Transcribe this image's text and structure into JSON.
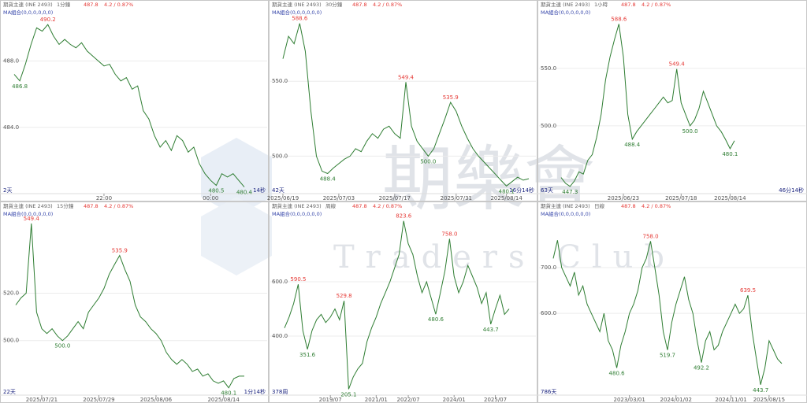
{
  "watermark": {
    "title": "期樂會",
    "subtitle": "Traders Club"
  },
  "chart_data": [
    {
      "type": "line",
      "instrument": "期貨主連 (INE 2493)",
      "period": "1分鐘",
      "price": "487.8",
      "change": "4.2 / 0.87%",
      "indicator": "MA組合(0,0,0,0,0,0)",
      "color": "#2e7d32",
      "values": [
        487.2,
        486.8,
        487.8,
        489.0,
        490.0,
        489.8,
        490.2,
        489.5,
        489.0,
        489.3,
        489.0,
        488.8,
        489.1,
        488.6,
        488.3,
        488.0,
        487.7,
        487.8,
        487.2,
        486.8,
        487.0,
        486.3,
        486.5,
        485.0,
        484.5,
        483.5,
        482.8,
        483.2,
        482.6,
        483.5,
        483.2,
        482.5,
        482.8,
        481.8,
        481.2,
        480.8,
        480.5,
        481.2,
        481.0,
        481.2,
        480.8,
        480.4
      ],
      "ylim": [
        480,
        491.3
      ],
      "yticks": [
        {
          "value": 484,
          "label": "484.0"
        },
        {
          "value": 488,
          "label": "488.0"
        }
      ],
      "xticks": [
        {
          "value": 16,
          "label": "22:00"
        },
        {
          "value": 35,
          "label": "00:00"
        }
      ],
      "annotations": [
        {
          "value": 490.2,
          "label": "490.2",
          "x": 6,
          "color": "#e53935"
        },
        {
          "value": 486.8,
          "label": "486.8",
          "x": 1,
          "color": "#2e7d32"
        },
        {
          "value": 480.5,
          "label": "480.5",
          "x": 36,
          "color": "#2e7d32"
        },
        {
          "value": 480.4,
          "label": "480.4",
          "x": 41,
          "color": "#2e7d32"
        }
      ],
      "count_label": "2天",
      "end_label": "14秒"
    },
    {
      "type": "line",
      "instrument": "期貨主連 (INE 2493)",
      "period": "30分鐘",
      "price": "487.8",
      "change": "4.2 / 0.87%",
      "indicator": "MA組合(0,0,0,0,0,0)",
      "color": "#2e7d32",
      "values": [
        565,
        580,
        575,
        588.6,
        570,
        530,
        500,
        490,
        488.4,
        492,
        495,
        498,
        500,
        505,
        503,
        510,
        515,
        512,
        518,
        520,
        515,
        512,
        549.4,
        520,
        510,
        505,
        500,
        505,
        515,
        525,
        535.9,
        530,
        520,
        512,
        505,
        500,
        496,
        492,
        488,
        484,
        480.1,
        483,
        486,
        484,
        485
      ],
      "ylim": [
        475,
        600
      ],
      "yticks": [
        {
          "value": 500,
          "label": "500.0"
        },
        {
          "value": 550,
          "label": "550.0"
        }
      ],
      "xticks": [
        {
          "value": 0,
          "label": "2025/06/19"
        },
        {
          "value": 10,
          "label": "2025/07/03"
        },
        {
          "value": 20,
          "label": "2025/07/17"
        },
        {
          "value": 31,
          "label": "2025/07/31"
        },
        {
          "value": 40,
          "label": "2025/08/14"
        }
      ],
      "annotations": [
        {
          "value": 588.6,
          "label": "588.6",
          "x": 3,
          "color": "#e53935"
        },
        {
          "value": 488.4,
          "label": "488.4",
          "x": 8,
          "color": "#2e7d32"
        },
        {
          "value": 549.4,
          "label": "549.4",
          "x": 22,
          "color": "#e53935"
        },
        {
          "value": 500,
          "label": "500.0",
          "x": 26,
          "color": "#2e7d32"
        },
        {
          "value": 535.9,
          "label": "535.9",
          "x": 30,
          "color": "#e53935"
        },
        {
          "value": 480.1,
          "label": "480.1",
          "x": 40,
          "color": "#2e7d32"
        }
      ],
      "count_label": "42天",
      "end_label": "16分14秒"
    },
    {
      "type": "line",
      "instrument": "期貨主連 (INE 2493)",
      "period": "1小時",
      "price": "487.8",
      "change": "4.2 / 0.87%",
      "indicator": "MA組合(0,0,0,0,0,0)",
      "color": "#2e7d32",
      "values": [
        455,
        450,
        447.3,
        452,
        460,
        458,
        470,
        475,
        490,
        510,
        540,
        560,
        575,
        588.6,
        560,
        510,
        488.4,
        495,
        500,
        505,
        510,
        515,
        520,
        525,
        520,
        522,
        549.4,
        520,
        510,
        500,
        505,
        515,
        530,
        520,
        510,
        500,
        495,
        488,
        480.1,
        487
      ],
      "ylim": [
        441,
        604
      ],
      "yticks": [
        {
          "value": 500,
          "label": "500.0"
        },
        {
          "value": 550,
          "label": "550.0"
        }
      ],
      "xticks": [
        {
          "value": 14,
          "label": "2025/06/23"
        },
        {
          "value": 27,
          "label": "2025/07/18"
        },
        {
          "value": 38,
          "label": "2025/08/14"
        }
      ],
      "annotations": [
        {
          "value": 447.3,
          "label": "447.3",
          "x": 2,
          "color": "#2e7d32"
        },
        {
          "value": 588.6,
          "label": "588.6",
          "x": 13,
          "color": "#e53935"
        },
        {
          "value": 488.4,
          "label": "488.4",
          "x": 16,
          "color": "#2e7d32"
        },
        {
          "value": 549.4,
          "label": "549.4",
          "x": 26,
          "color": "#e53935"
        },
        {
          "value": 500,
          "label": "500.0",
          "x": 29,
          "color": "#2e7d32"
        },
        {
          "value": 480.1,
          "label": "480.1",
          "x": 38,
          "color": "#2e7d32"
        }
      ],
      "count_label": "63天",
      "end_label": "46分14秒"
    },
    {
      "type": "line",
      "instrument": "期貨主連 (INE 2493)",
      "period": "15分鐘",
      "price": "487.8",
      "change": "4.2 / 0.87%",
      "indicator": "MA組合(0,0,0,0,0,0)",
      "color": "#2e7d32",
      "values": [
        515,
        518,
        520,
        549.4,
        512,
        505,
        503,
        505,
        502,
        500,
        502,
        505,
        508,
        505,
        512,
        515,
        518,
        522,
        528,
        532,
        535.9,
        530,
        525,
        515,
        510,
        508,
        505,
        503,
        500,
        495,
        492,
        490,
        492,
        490,
        487,
        488,
        485,
        486,
        483,
        482,
        483,
        480.1,
        484,
        485,
        485
      ],
      "ylim": [
        477,
        556
      ],
      "yticks": [
        {
          "value": 500,
          "label": "500.0"
        },
        {
          "value": 520,
          "label": "520.0"
        }
      ],
      "xticks": [
        {
          "value": 5,
          "label": "2025/07/21"
        },
        {
          "value": 16,
          "label": "2025/07/29"
        },
        {
          "value": 27,
          "label": "2025/08/06"
        },
        {
          "value": 40,
          "label": "2025/08/14"
        }
      ],
      "annotations": [
        {
          "value": 549.4,
          "label": "549.4",
          "x": 3,
          "color": "#e53935"
        },
        {
          "value": 500,
          "label": "500.0",
          "x": 9,
          "color": "#2e7d32"
        },
        {
          "value": 535.9,
          "label": "535.9",
          "x": 20,
          "color": "#e53935"
        },
        {
          "value": 480.1,
          "label": "480.1",
          "x": 41,
          "color": "#2e7d32"
        }
      ],
      "count_label": "22天",
      "end_label": "1分14秒"
    },
    {
      "type": "line",
      "instrument": "期貨主連 (INE 2493)",
      "period": "周線",
      "price": "487.8",
      "change": "4.2 / 0.87%",
      "indicator": "MA組合(0,0,0,0,0,0)",
      "color": "#2e7d32",
      "values": [
        430,
        470,
        520,
        590.5,
        420,
        351.6,
        420,
        460,
        480,
        450,
        470,
        500,
        460,
        529.8,
        205.1,
        250,
        280,
        300,
        380,
        430,
        470,
        520,
        560,
        600,
        650,
        700,
        823.6,
        740,
        700,
        620,
        560,
        600,
        540,
        480.6,
        560,
        640,
        758.0,
        620,
        560,
        600,
        660,
        620,
        580,
        520,
        560,
        443.7,
        500,
        550,
        480,
        500
      ],
      "ylim": [
        183,
        872
      ],
      "yticks": [
        {
          "value": 400,
          "label": "400.0"
        },
        {
          "value": 600,
          "label": "600.0"
        }
      ],
      "xticks": [
        {
          "value": 10,
          "label": "2019/07"
        },
        {
          "value": 20,
          "label": "2021/01"
        },
        {
          "value": 27,
          "label": "2022/07"
        },
        {
          "value": 37,
          "label": "2024/01"
        },
        {
          "value": 46,
          "label": "2025/07"
        }
      ],
      "annotations": [
        {
          "value": 590.5,
          "label": "590.5",
          "x": 3,
          "color": "#e53935"
        },
        {
          "value": 351.6,
          "label": "351.6",
          "x": 5,
          "color": "#2e7d32"
        },
        {
          "value": 529.8,
          "label": "529.8",
          "x": 13,
          "color": "#e53935"
        },
        {
          "value": 205.1,
          "label": "205.1",
          "x": 14,
          "color": "#2e7d32"
        },
        {
          "value": 823.6,
          "label": "823.6",
          "x": 26,
          "color": "#e53935"
        },
        {
          "value": 480.6,
          "label": "480.6",
          "x": 33,
          "color": "#2e7d32"
        },
        {
          "value": 758,
          "label": "758.0",
          "x": 36,
          "color": "#e53935"
        },
        {
          "value": 443.7,
          "label": "443.7",
          "x": 45,
          "color": "#2e7d32"
        }
      ],
      "count_label": "378周"
    },
    {
      "type": "line",
      "instrument": "期貨主連 (INE 2493)",
      "period": "日線",
      "price": "487.8",
      "change": "4.2 / 0.87%",
      "indicator": "MA組合(0,0,0,0,0,0)",
      "color": "#2e7d32",
      "values": [
        720,
        760,
        700,
        680,
        660,
        690,
        640,
        660,
        620,
        600,
        580,
        560,
        600,
        540,
        520,
        480.6,
        530,
        560,
        600,
        620,
        650,
        700,
        720,
        758.0,
        700,
        640,
        560,
        519.7,
        580,
        620,
        650,
        680,
        630,
        600,
        540,
        492.2,
        540,
        560,
        520,
        530,
        560,
        580,
        600,
        620,
        600,
        610,
        639.5,
        560,
        500,
        443.7,
        480,
        540,
        520,
        500,
        490
      ],
      "ylim": [
        421,
        831
      ],
      "yticks": [
        {
          "value": 600,
          "label": "600.0"
        },
        {
          "value": 700,
          "label": "700.0"
        }
      ],
      "xticks": [
        {
          "value": 18,
          "label": "2023/03/01"
        },
        {
          "value": 29,
          "label": "2024/01/02"
        },
        {
          "value": 42,
          "label": "2024/11/01"
        },
        {
          "value": 51,
          "label": "2025/08/15"
        }
      ],
      "annotations": [
        {
          "value": 480.6,
          "label": "480.6",
          "x": 15,
          "color": "#2e7d32"
        },
        {
          "value": 758,
          "label": "758.0",
          "x": 23,
          "color": "#e53935"
        },
        {
          "value": 519.7,
          "label": "519.7",
          "x": 27,
          "color": "#2e7d32"
        },
        {
          "value": 492.2,
          "label": "492.2",
          "x": 35,
          "color": "#2e7d32"
        },
        {
          "value": 639.5,
          "label": "639.5",
          "x": 46,
          "color": "#e53935"
        },
        {
          "value": 443.7,
          "label": "443.7",
          "x": 49,
          "color": "#2e7d32"
        }
      ],
      "count_label": "786天"
    }
  ]
}
